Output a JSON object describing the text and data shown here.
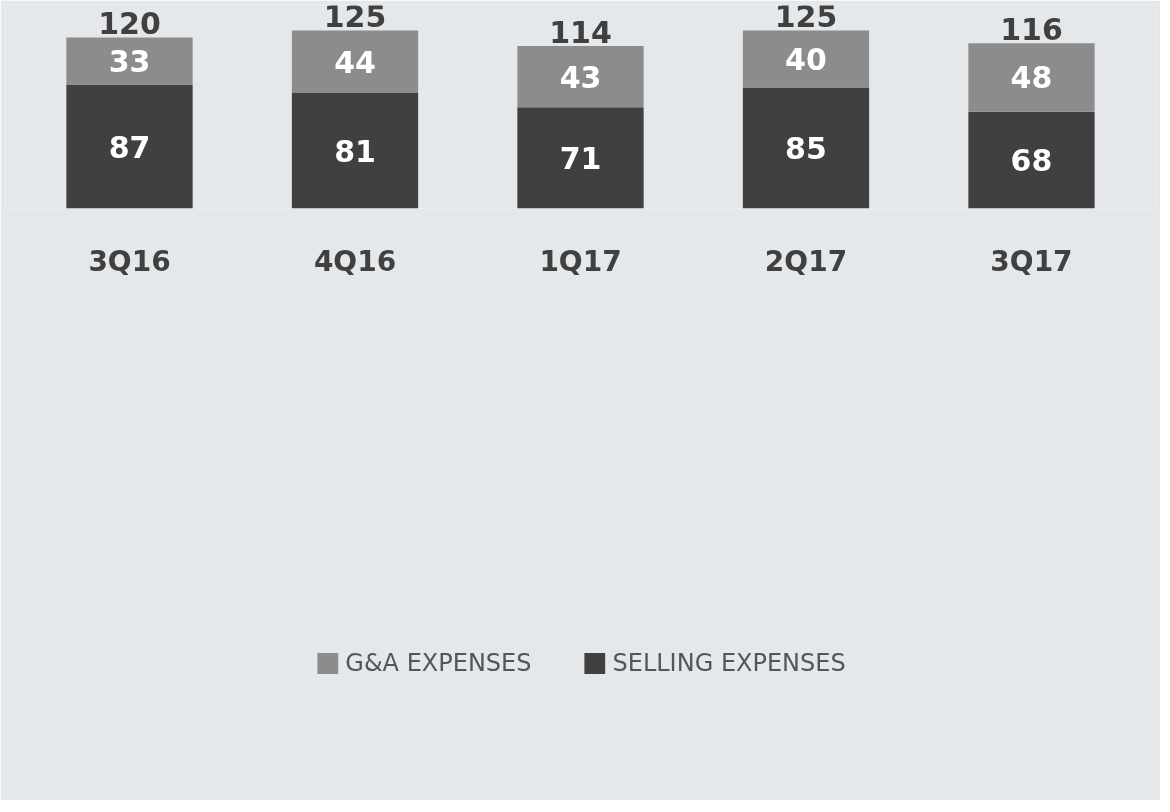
{
  "chart_data": {
    "type": "bar",
    "categories": [
      "3Q16",
      "4Q16",
      "1Q17",
      "2Q17",
      "3Q17"
    ],
    "series": [
      {
        "name": "SELLING EXPENSES",
        "color": "#404040",
        "values": [
          87,
          81,
          71,
          85,
          68
        ]
      },
      {
        "name": "G&A EXPENSES",
        "color": "#8c8c8c",
        "values": [
          33,
          44,
          43,
          40,
          48
        ]
      }
    ],
    "stacked": true,
    "data_labels": true,
    "totals": [
      "120",
      "125",
      "114",
      "125",
      "116"
    ],
    "legend": "bottom"
  }
}
